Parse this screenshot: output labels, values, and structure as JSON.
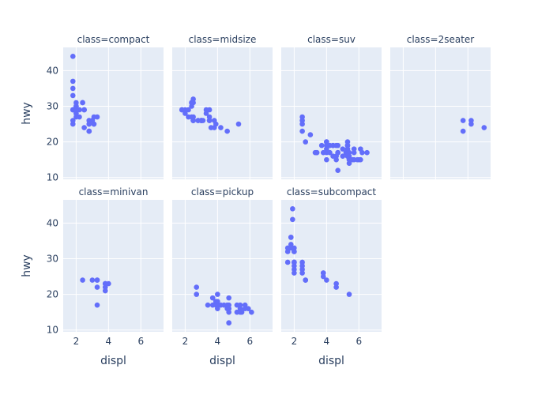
{
  "chart_data": {
    "type": "scatter",
    "facet_variable": "class",
    "xlabel": "displ",
    "ylabel": "hwy",
    "xlim": [
      1.2,
      7.4
    ],
    "ylim": [
      9.5,
      46.5
    ],
    "xticks": [
      2,
      4,
      6
    ],
    "yticks": [
      10,
      20,
      30,
      40
    ],
    "grid": true,
    "marker_color": "#636EFA",
    "background_color": "#E5ECF6",
    "facets": [
      {
        "title": "class=compact",
        "points": [
          [
            1.8,
            29
          ],
          [
            1.8,
            29
          ],
          [
            2.0,
            31
          ],
          [
            2.0,
            30
          ],
          [
            2.8,
            26
          ],
          [
            2.8,
            26
          ],
          [
            3.1,
            27
          ],
          [
            1.8,
            26
          ],
          [
            1.8,
            25
          ],
          [
            2.0,
            28
          ],
          [
            2.0,
            27
          ],
          [
            2.8,
            25
          ],
          [
            2.8,
            25
          ],
          [
            3.1,
            25
          ],
          [
            3.1,
            25
          ],
          [
            2.0,
            29
          ],
          [
            2.0,
            29
          ],
          [
            2.5,
            29
          ],
          [
            2.5,
            29
          ],
          [
            2.2,
            27
          ],
          [
            2.2,
            29
          ],
          [
            2.4,
            31
          ],
          [
            2.4,
            31
          ],
          [
            3.0,
            26
          ],
          [
            3.0,
            26
          ],
          [
            3.3,
            27
          ],
          [
            1.8,
            44
          ],
          [
            1.8,
            37
          ],
          [
            1.8,
            35
          ],
          [
            1.8,
            33
          ],
          [
            1.9,
            29
          ],
          [
            2.0,
            29
          ],
          [
            2.0,
            28
          ],
          [
            2.5,
            24
          ],
          [
            2.8,
            23
          ],
          [
            2.8,
            23
          ],
          [
            2.0,
            30
          ],
          [
            2.0,
            30
          ]
        ]
      },
      {
        "title": "class=midsize",
        "points": [
          [
            2.4,
            27
          ],
          [
            2.4,
            30
          ],
          [
            2.4,
            31
          ],
          [
            2.5,
            32
          ],
          [
            2.5,
            31
          ],
          [
            3.3,
            29
          ],
          [
            3.5,
            29
          ],
          [
            3.3,
            28
          ],
          [
            3.5,
            27
          ],
          [
            3.8,
            26
          ],
          [
            3.8,
            24
          ],
          [
            3.9,
            25
          ],
          [
            4.6,
            23
          ],
          [
            1.8,
            29
          ],
          [
            1.8,
            29
          ],
          [
            2.0,
            28
          ],
          [
            2.0,
            29
          ],
          [
            2.8,
            26
          ],
          [
            2.8,
            26
          ],
          [
            3.1,
            26
          ],
          [
            4.2,
            24
          ],
          [
            2.5,
            26
          ],
          [
            2.5,
            26
          ],
          [
            2.5,
            26
          ],
          [
            2.5,
            27
          ],
          [
            3.0,
            26
          ],
          [
            3.0,
            26
          ],
          [
            3.5,
            26
          ],
          [
            2.2,
            29
          ],
          [
            2.2,
            27
          ],
          [
            2.4,
            31
          ],
          [
            2.4,
            31
          ],
          [
            3.0,
            26
          ],
          [
            3.0,
            26
          ],
          [
            3.5,
            26
          ],
          [
            3.6,
            24
          ],
          [
            5.3,
            25
          ]
        ]
      },
      {
        "title": "class=suv",
        "points": [
          [
            2.5,
            27
          ],
          [
            2.5,
            26
          ],
          [
            2.5,
            25
          ],
          [
            2.5,
            23
          ],
          [
            2.7,
            20
          ],
          [
            3.0,
            22
          ],
          [
            3.7,
            19
          ],
          [
            4.0,
            20
          ],
          [
            4.0,
            19
          ],
          [
            4.0,
            20
          ],
          [
            4.0,
            17
          ],
          [
            4.2,
            17
          ],
          [
            4.4,
            19
          ],
          [
            4.6,
            19
          ],
          [
            4.7,
            17
          ],
          [
            4.7,
            17
          ],
          [
            4.7,
            17
          ],
          [
            4.7,
            19
          ],
          [
            5.2,
            17
          ],
          [
            5.3,
            19
          ],
          [
            5.3,
            20
          ],
          [
            5.3,
            19
          ],
          [
            5.4,
            17
          ],
          [
            5.4,
            16
          ],
          [
            5.4,
            15
          ],
          [
            5.6,
            15
          ],
          [
            5.7,
            17
          ],
          [
            5.7,
            15
          ],
          [
            6.0,
            15
          ],
          [
            6.2,
            17
          ],
          [
            6.5,
            17
          ],
          [
            3.3,
            17
          ],
          [
            3.8,
            17
          ],
          [
            4.0,
            15
          ],
          [
            4.6,
            15
          ],
          [
            4.7,
            12
          ],
          [
            5.3,
            16
          ],
          [
            5.9,
            15
          ],
          [
            5.4,
            14
          ],
          [
            5.4,
            15
          ],
          [
            4.6,
            16
          ],
          [
            5.0,
            18
          ],
          [
            3.4,
            17
          ],
          [
            3.4,
            17
          ],
          [
            4.2,
            19
          ],
          [
            4.4,
            19
          ],
          [
            5.0,
            16
          ],
          [
            4.4,
            16
          ],
          [
            5.3,
            18
          ],
          [
            5.3,
            16
          ],
          [
            4.0,
            18
          ],
          [
            5.7,
            18
          ],
          [
            6.1,
            18
          ],
          [
            6.1,
            15
          ]
        ]
      },
      {
        "title": "class=2seater",
        "points": [
          [
            5.7,
            26
          ],
          [
            5.7,
            23
          ],
          [
            6.2,
            26
          ],
          [
            6.2,
            25
          ],
          [
            7.0,
            24
          ]
        ]
      },
      {
        "title": "class=minivan",
        "points": [
          [
            2.4,
            24
          ],
          [
            3.0,
            24
          ],
          [
            3.3,
            22
          ],
          [
            3.3,
            24
          ],
          [
            3.3,
            24
          ],
          [
            3.3,
            17
          ],
          [
            3.8,
            22
          ],
          [
            3.8,
            21
          ],
          [
            3.8,
            23
          ],
          [
            3.8,
            23
          ],
          [
            4.0,
            23
          ]
        ]
      },
      {
        "title": "class=pickup",
        "points": [
          [
            2.7,
            20
          ],
          [
            2.7,
            22
          ],
          [
            3.4,
            17
          ],
          [
            3.7,
            19
          ],
          [
            3.9,
            18
          ],
          [
            3.7,
            17
          ],
          [
            4.0,
            18
          ],
          [
            4.0,
            17
          ],
          [
            4.2,
            17
          ],
          [
            4.4,
            17
          ],
          [
            4.7,
            16
          ],
          [
            4.7,
            15
          ],
          [
            4.7,
            16
          ],
          [
            4.7,
            12
          ],
          [
            4.7,
            12
          ],
          [
            5.2,
            17
          ],
          [
            5.2,
            15
          ],
          [
            5.7,
            17
          ],
          [
            5.9,
            16
          ],
          [
            4.6,
            16
          ],
          [
            4.6,
            17
          ],
          [
            5.4,
            17
          ],
          [
            5.4,
            16
          ],
          [
            5.4,
            15
          ],
          [
            5.5,
            15
          ],
          [
            4.7,
            19
          ],
          [
            4.7,
            17
          ],
          [
            4.0,
            20
          ],
          [
            3.9,
            17
          ],
          [
            3.9,
            18
          ],
          [
            4.0,
            16
          ],
          [
            5.7,
            16
          ],
          [
            6.1,
            15
          ]
        ]
      },
      {
        "title": "class=subcompact",
        "points": [
          [
            2.0,
            33
          ],
          [
            2.0,
            32
          ],
          [
            2.0,
            32
          ],
          [
            2.0,
            29
          ],
          [
            1.6,
            32
          ],
          [
            1.6,
            33
          ],
          [
            1.6,
            29
          ],
          [
            1.8,
            34
          ],
          [
            1.8,
            36
          ],
          [
            1.9,
            44
          ],
          [
            1.9,
            41
          ],
          [
            1.8,
            36
          ],
          [
            1.8,
            33
          ],
          [
            2.0,
            29
          ],
          [
            2.0,
            29
          ],
          [
            2.0,
            27
          ],
          [
            2.0,
            26
          ],
          [
            2.5,
            29
          ],
          [
            2.5,
            26
          ],
          [
            2.5,
            28
          ],
          [
            2.7,
            24
          ],
          [
            2.7,
            24
          ],
          [
            3.8,
            26
          ],
          [
            3.8,
            25
          ],
          [
            3.8,
            26
          ],
          [
            4.0,
            24
          ],
          [
            4.6,
            23
          ],
          [
            4.6,
            22
          ],
          [
            5.4,
            20
          ],
          [
            2.0,
            28
          ],
          [
            2.5,
            27
          ]
        ]
      }
    ]
  }
}
